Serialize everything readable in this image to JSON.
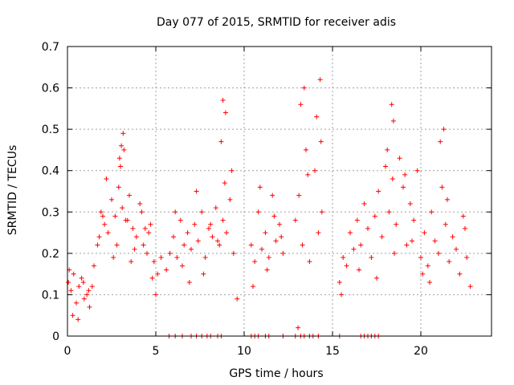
{
  "chart_data": {
    "type": "scatter",
    "title": "Day 077 of 2015, SRMTID for receiver adis",
    "xlabel": "GPS time / hours",
    "ylabel": "SRMTID / TECUs",
    "xlim": [
      0,
      24
    ],
    "ylim": [
      0,
      0.7
    ],
    "xticks": [
      0,
      5,
      10,
      15,
      20
    ],
    "yticks": [
      0,
      0.1,
      0.2,
      0.3,
      0.4,
      0.5,
      0.6,
      0.7
    ],
    "xtick_labels": [
      "0",
      "5",
      "10",
      "15",
      "20"
    ],
    "ytick_labels": [
      "0",
      "0.1",
      "0.2",
      "0.3",
      "0.4",
      "0.5",
      "0.6",
      "0.7"
    ],
    "grid": true,
    "marker": "+",
    "marker_color": "#ff0000",
    "series": [
      {
        "name": "SRMTID",
        "x": [
          0.05,
          0.2,
          0.35,
          0.5,
          0.65,
          0.8,
          0.95,
          1.1,
          1.25,
          1.4,
          0.1,
          0.3,
          0.6,
          0.9,
          1.2,
          1.5,
          1.7,
          1.9,
          2.1,
          2.3,
          2.5,
          2.7,
          2.9,
          3.1,
          3.3,
          3.5,
          3.7,
          3.9,
          4.1,
          4.3,
          4.5,
          4.7,
          4.9,
          5.1,
          5.3,
          1.8,
          2.2,
          2.6,
          3.0,
          3.2,
          3.4,
          3.8,
          4.2,
          4.6,
          5.0,
          2.0,
          2.8,
          3.6,
          4.4,
          4.8,
          3.05,
          3.15,
          2.95,
          5.6,
          5.8,
          6.0,
          6.2,
          6.4,
          6.6,
          6.8,
          7.0,
          7.2,
          7.4,
          7.6,
          7.8,
          8.0,
          8.2,
          8.4,
          8.6,
          8.8,
          9.0,
          9.2,
          9.4,
          6.1,
          6.5,
          6.9,
          7.3,
          7.7,
          8.1,
          8.5,
          8.9,
          9.3,
          8.7,
          8.8,
          8.95,
          9.6,
          10.4,
          10.6,
          10.8,
          11.0,
          11.2,
          11.4,
          11.6,
          11.8,
          12.0,
          12.2,
          10.5,
          10.9,
          11.3,
          11.7,
          12.1,
          12.9,
          13.1,
          13.3,
          13.5,
          13.7,
          14.0,
          14.2,
          14.4,
          13.2,
          13.4,
          13.6,
          14.1,
          14.3,
          14.35,
          13.05,
          15.4,
          15.6,
          15.8,
          16.0,
          16.2,
          16.4,
          16.6,
          16.8,
          17.0,
          17.2,
          17.4,
          17.6,
          17.8,
          18.0,
          18.2,
          18.4,
          18.6,
          18.8,
          19.0,
          19.2,
          19.4,
          19.6,
          19.8,
          20.0,
          20.2,
          20.4,
          20.6,
          20.8,
          21.0,
          21.2,
          21.4,
          21.6,
          21.8,
          22.0,
          22.2,
          22.4,
          22.6,
          22.8,
          15.5,
          16.5,
          17.5,
          18.5,
          19.5,
          20.5,
          21.5,
          22.5,
          18.35,
          18.45,
          21.1,
          21.3,
          18.1,
          19.1,
          20.1,
          5.75,
          6.1,
          6.5,
          7.0,
          7.3,
          7.6,
          7.9,
          8.1,
          8.5,
          8.7,
          10.4,
          10.6,
          10.8,
          11.2,
          11.4,
          12.2,
          12.9,
          13.2,
          13.4,
          13.7,
          13.9,
          14.2,
          15.4,
          16.6,
          16.8,
          17.0,
          17.2,
          17.4,
          17.6
        ],
        "y": [
          0.13,
          0.11,
          0.15,
          0.08,
          0.12,
          0.14,
          0.09,
          0.1,
          0.07,
          0.12,
          0.16,
          0.05,
          0.04,
          0.13,
          0.11,
          0.17,
          0.22,
          0.3,
          0.27,
          0.25,
          0.33,
          0.29,
          0.36,
          0.31,
          0.28,
          0.34,
          0.26,
          0.24,
          0.32,
          0.22,
          0.2,
          0.27,
          0.18,
          0.15,
          0.19,
          0.24,
          0.38,
          0.19,
          0.41,
          0.45,
          0.28,
          0.21,
          0.3,
          0.25,
          0.1,
          0.29,
          0.22,
          0.18,
          0.26,
          0.14,
          0.46,
          0.49,
          0.43,
          0.16,
          0.2,
          0.24,
          0.19,
          0.28,
          0.22,
          0.25,
          0.21,
          0.27,
          0.23,
          0.3,
          0.19,
          0.26,
          0.24,
          0.31,
          0.22,
          0.28,
          0.25,
          0.33,
          0.2,
          0.3,
          0.17,
          0.13,
          0.35,
          0.15,
          0.27,
          0.23,
          0.37,
          0.4,
          0.47,
          0.57,
          0.54,
          0.09,
          0.22,
          0.18,
          0.3,
          0.21,
          0.25,
          0.19,
          0.34,
          0.23,
          0.27,
          0.2,
          0.12,
          0.36,
          0.16,
          0.29,
          0.24,
          0.28,
          0.34,
          0.22,
          0.45,
          0.18,
          0.4,
          0.25,
          0.3,
          0.56,
          0.6,
          0.39,
          0.53,
          0.62,
          0.47,
          0.02,
          0.13,
          0.19,
          0.17,
          0.25,
          0.21,
          0.28,
          0.22,
          0.32,
          0.26,
          0.19,
          0.29,
          0.35,
          0.24,
          0.41,
          0.3,
          0.38,
          0.27,
          0.43,
          0.36,
          0.22,
          0.32,
          0.28,
          0.4,
          0.19,
          0.25,
          0.17,
          0.3,
          0.23,
          0.2,
          0.36,
          0.27,
          0.18,
          0.24,
          0.21,
          0.15,
          0.29,
          0.19,
          0.12,
          0.1,
          0.16,
          0.14,
          0.2,
          0.23,
          0.13,
          0.33,
          0.26,
          0.56,
          0.52,
          0.47,
          0.5,
          0.45,
          0.39,
          0.15,
          0,
          0,
          0,
          0,
          0,
          0,
          0,
          0,
          0,
          0,
          0,
          0,
          0,
          0,
          0,
          0,
          0,
          0,
          0,
          0,
          0,
          0,
          0,
          0,
          0,
          0,
          0,
          0,
          0
        ]
      }
    ]
  }
}
